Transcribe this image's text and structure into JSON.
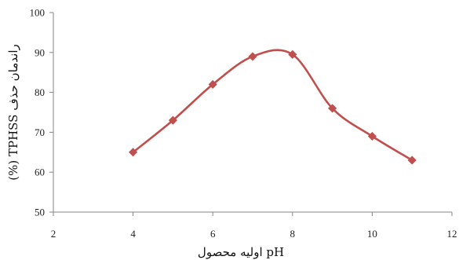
{
  "chart_data": {
    "type": "line",
    "title": "",
    "xlabel": "pH اولیه محصول",
    "ylabel": "راندمان حذف TPHSS (%)",
    "x": [
      4,
      5,
      6,
      7,
      8,
      9,
      10,
      11
    ],
    "series": [
      {
        "values": [
          65,
          73,
          82,
          89,
          89.5,
          76,
          69,
          63
        ]
      }
    ],
    "xlim": [
      2,
      12
    ],
    "ylim": [
      50,
      100
    ],
    "xticks": [
      2,
      4,
      6,
      8,
      10,
      12
    ],
    "yticks": [
      50,
      60,
      70,
      80,
      90,
      100
    ],
    "grid": false,
    "legend": "none",
    "line_style": "smooth",
    "marker": "diamond",
    "colors": {
      "series": "#C0504D",
      "axis": "#868686"
    }
  }
}
